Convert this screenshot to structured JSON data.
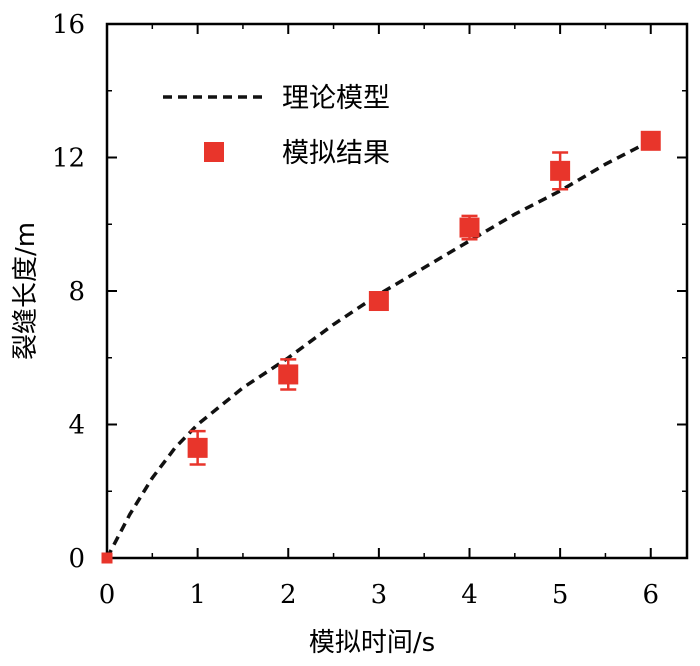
{
  "chart_data": {
    "type": "scatter",
    "title": "",
    "xlabel": "模拟时间/s",
    "ylabel": "裂缝长度/m",
    "xlim": [
      0,
      6.4
    ],
    "ylim": [
      0,
      16
    ],
    "xticks": [
      0,
      1,
      2,
      3,
      4,
      5,
      6
    ],
    "yticks": [
      0,
      4,
      8,
      12,
      16
    ],
    "xtick_labels": [
      "0",
      "1",
      "2",
      "3",
      "4",
      "5",
      "6"
    ],
    "ytick_labels": [
      "0",
      "4",
      "8",
      "12",
      "16"
    ],
    "grid": false,
    "legend_position": "top-left",
    "series": [
      {
        "name": "理论模型",
        "kind": "line",
        "style": "dashed",
        "color": "#111111",
        "x": [
          0,
          0.25,
          0.5,
          0.75,
          1,
          1.5,
          2,
          2.5,
          3,
          3.5,
          4,
          4.5,
          5,
          5.5,
          6
        ],
        "y": [
          0,
          1.3,
          2.4,
          3.3,
          4.0,
          5.1,
          6.0,
          7.0,
          7.9,
          8.7,
          9.5,
          10.3,
          11.0,
          11.8,
          12.5
        ]
      },
      {
        "name": "模拟结果",
        "kind": "scatter",
        "marker": "square",
        "color": "#e8352b",
        "x": [
          0,
          1,
          2,
          3,
          4,
          5,
          6
        ],
        "y": [
          0,
          3.3,
          5.5,
          7.7,
          9.9,
          11.6,
          12.5
        ],
        "error": [
          0,
          0.5,
          0.45,
          0.1,
          0.35,
          0.55,
          0.25
        ]
      }
    ]
  }
}
